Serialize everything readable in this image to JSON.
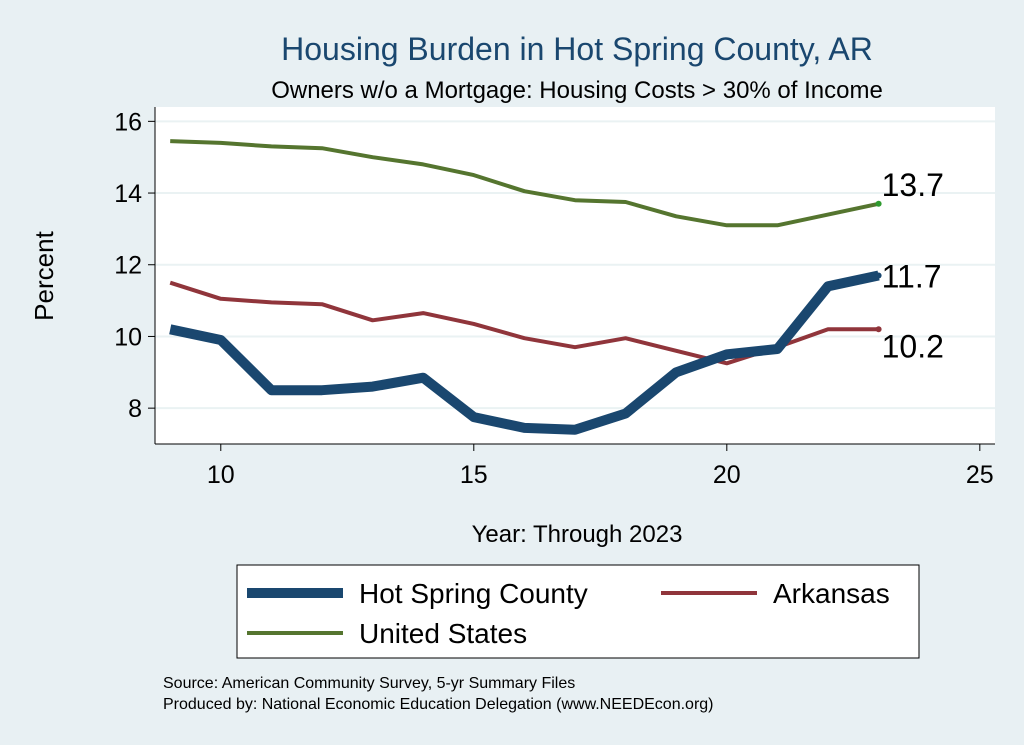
{
  "chart_data": {
    "type": "line",
    "title": "Housing Burden in Hot Spring County, AR",
    "subtitle": "Owners w/o a Mortgage: Housing Costs > 30% of Income",
    "xlabel": "Year: Through 2023",
    "ylabel": "Percent",
    "xlim": [
      8.7,
      25.3
    ],
    "ylim": [
      7.0,
      16.4
    ],
    "xticks": [
      10,
      15,
      20,
      25
    ],
    "yticks": [
      8,
      10,
      12,
      14,
      16
    ],
    "grid": true,
    "legend_position": "bottom",
    "x": [
      9,
      10,
      11,
      12,
      13,
      14,
      15,
      16,
      17,
      18,
      19,
      20,
      21,
      22,
      23
    ],
    "series": [
      {
        "name": "Hot Spring County",
        "color": "#1a476f",
        "values": [
          10.2,
          9.9,
          8.5,
          8.5,
          8.6,
          8.85,
          7.75,
          7.45,
          7.4,
          7.85,
          9.0,
          9.5,
          9.65,
          11.4,
          11.7
        ],
        "end_label": "11.7"
      },
      {
        "name": "Arkansas",
        "color": "#90353b",
        "values": [
          11.5,
          11.05,
          10.95,
          10.9,
          10.45,
          10.65,
          10.35,
          9.95,
          9.7,
          9.95,
          9.6,
          9.25,
          9.7,
          10.2,
          10.2
        ],
        "end_label": "10.2"
      },
      {
        "name": "United States",
        "color": "#55752f",
        "values": [
          15.45,
          15.4,
          15.3,
          15.25,
          15.0,
          14.8,
          14.5,
          14.05,
          13.8,
          13.75,
          13.35,
          13.1,
          13.1,
          13.4,
          13.7
        ],
        "end_label": "13.7"
      }
    ]
  },
  "source_line": "Source: American Community Survey, 5-yr Summary Files",
  "produced_line": "Produced by: National Economic Education Delegation (www.NEEDEcon.org)"
}
